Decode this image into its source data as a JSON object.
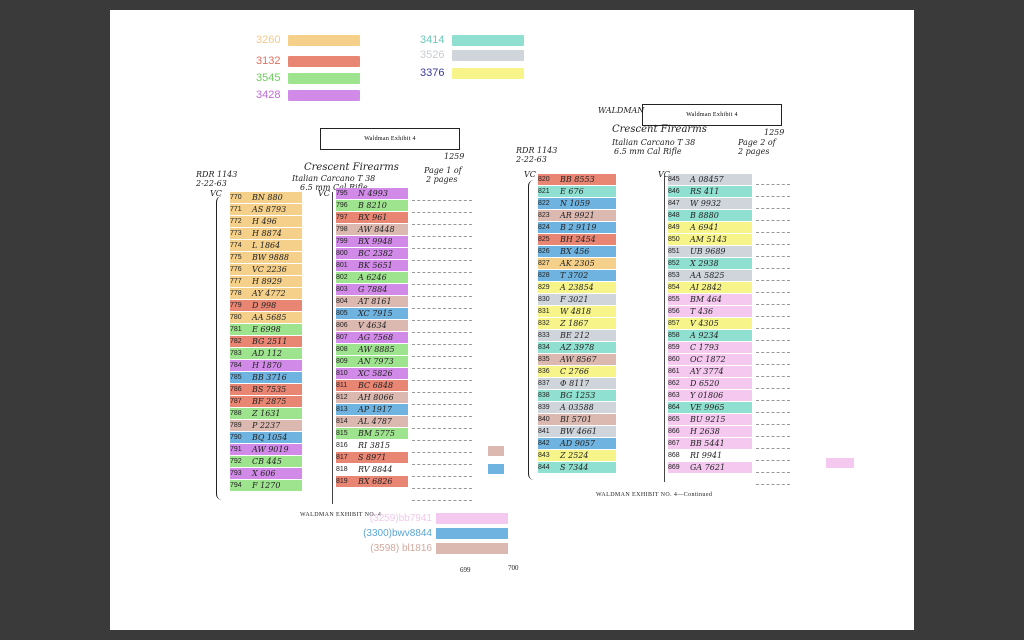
{
  "legend": [
    {
      "num": "3260",
      "color": "#f5d08a",
      "numColor": "#f2c98a"
    },
    {
      "num": "3132",
      "color": "#e88573",
      "numColor": "#e0705e"
    },
    {
      "num": "3545",
      "color": "#9ee38e",
      "numColor": "#6fce5e"
    },
    {
      "num": "3428",
      "color": "#d28ae8",
      "numColor": "#c06ad8"
    },
    {
      "num": "3414",
      "color": "#8fe0d0",
      "numColor": "#6cc9bb"
    },
    {
      "num": "3526",
      "color": "#d0d5dc",
      "numColor": "#c8ccd2"
    },
    {
      "num": "3376",
      "color": "#f7f58a",
      "numColor": "#3a3a9a"
    }
  ],
  "doc1": {
    "header": "Waldman Exhibit 4",
    "ref": "RDR 1143",
    "date": "2-22-63",
    "title": "Crescent Firearms",
    "subtitle": "Italian Carcano T 38",
    "subtitle2": "6.5 mm Cal Rifle",
    "num": "1259",
    "page": "Page 1 of",
    "page2": "2 pages",
    "vc1": "VC",
    "vc2": "VC",
    "caption": "WALDMAN EXHIBIT NO. 4",
    "col1": [
      {
        "n": "770",
        "t": "BN 880",
        "c": "#f5d08a"
      },
      {
        "n": "771",
        "t": "AS 8793",
        "c": "#f5d08a"
      },
      {
        "n": "772",
        "t": "H 496",
        "c": "#f5d08a"
      },
      {
        "n": "773",
        "t": "H 8874",
        "c": "#f5d08a"
      },
      {
        "n": "774",
        "t": "L 1864",
        "c": "#f5d08a"
      },
      {
        "n": "775",
        "t": "BW 9888",
        "c": "#f5d08a"
      },
      {
        "n": "776",
        "t": "VC 2236",
        "c": "#f5d08a"
      },
      {
        "n": "777",
        "t": "H 8929",
        "c": "#f5d08a"
      },
      {
        "n": "778",
        "t": "AY 4772",
        "c": "#f5d08a"
      },
      {
        "n": "779",
        "t": "D 998",
        "c": "#e88573"
      },
      {
        "n": "780",
        "t": "AA 5685",
        "c": "#f5d08a"
      },
      {
        "n": "781",
        "t": "E 6998",
        "c": "#9ee38e"
      },
      {
        "n": "782",
        "t": "BG 2511",
        "c": "#e88573"
      },
      {
        "n": "783",
        "t": "AD 112",
        "c": "#9ee38e"
      },
      {
        "n": "784",
        "t": "H 1870",
        "c": "#d28ae8"
      },
      {
        "n": "785",
        "t": "BB 3716",
        "c": "#6fb3e0"
      },
      {
        "n": "786",
        "t": "BS 7535",
        "c": "#e88573"
      },
      {
        "n": "787",
        "t": "BF 2875",
        "c": "#e88573"
      },
      {
        "n": "788",
        "t": "Z 1631",
        "c": "#9ee38e"
      },
      {
        "n": "789",
        "t": "P 2237",
        "c": "#dbb8b0"
      },
      {
        "n": "790",
        "t": "BQ 1054",
        "c": "#6fb3e0"
      },
      {
        "n": "791",
        "t": "AW 9019",
        "c": "#d28ae8"
      },
      {
        "n": "792",
        "t": "CB 445",
        "c": "#9ee38e"
      },
      {
        "n": "793",
        "t": "X 606",
        "c": "#d28ae8"
      },
      {
        "n": "794",
        "t": "F 1270",
        "c": "#9ee38e"
      }
    ],
    "col2": [
      {
        "n": "795",
        "t": "N 4993",
        "c": "#d28ae8"
      },
      {
        "n": "796",
        "t": "B 8210",
        "c": "#9ee38e"
      },
      {
        "n": "797",
        "t": "BX 961",
        "c": "#e88573"
      },
      {
        "n": "798",
        "t": "AW 8448",
        "c": "#dbb8b0"
      },
      {
        "n": "799",
        "t": "BX 9948",
        "c": "#d28ae8"
      },
      {
        "n": "800",
        "t": "BC 2382",
        "c": "#d28ae8"
      },
      {
        "n": "801",
        "t": "BK 5651",
        "c": "#d28ae8"
      },
      {
        "n": "802",
        "t": "A 6246",
        "c": "#9ee38e"
      },
      {
        "n": "803",
        "t": "G 7884",
        "c": "#d28ae8"
      },
      {
        "n": "804",
        "t": "AT 8161",
        "c": "#dbb8b0"
      },
      {
        "n": "805",
        "t": "XC 7915",
        "c": "#6fb3e0"
      },
      {
        "n": "806",
        "t": "V 4634",
        "c": "#dbb8b0"
      },
      {
        "n": "807",
        "t": "AG 7568",
        "c": "#d28ae8"
      },
      {
        "n": "808",
        "t": "AW 8885",
        "c": "#9ee38e"
      },
      {
        "n": "809",
        "t": "AN 7973",
        "c": "#9ee38e"
      },
      {
        "n": "810",
        "t": "XC 5826",
        "c": "#d28ae8"
      },
      {
        "n": "811",
        "t": "BC 6848",
        "c": "#e88573"
      },
      {
        "n": "812",
        "t": "AH 8066",
        "c": "#dbb8b0"
      },
      {
        "n": "813",
        "t": "AP 1917",
        "c": "#6fb3e0"
      },
      {
        "n": "814",
        "t": "AL 4787",
        "c": "#dbb8b0"
      },
      {
        "n": "815",
        "t": "BM 5775",
        "c": "#9ee38e"
      },
      {
        "n": "816",
        "t": "RI 3815",
        "c": ""
      },
      {
        "n": "817",
        "t": "S 8971",
        "c": "#e88573"
      },
      {
        "n": "818",
        "t": "RV 8844",
        "c": ""
      },
      {
        "n": "819",
        "t": "BX 6826",
        "c": "#e88573"
      }
    ]
  },
  "doc2": {
    "header": "Waldman Exhibit 4",
    "handTop": "WALDMAN",
    "ref": "RDR 1143",
    "date": "2-22-63",
    "title": "Crescent Firearms",
    "subtitle": "Italian Carcano T 38",
    "subtitle2": "6.5 mm Cal Rifle",
    "num": "1259",
    "page": "Page 2 of",
    "page2": "2 pages",
    "vc1": "VC",
    "vc2": "VC",
    "caption": "WALDMAN EXHIBIT NO. 4—Continued",
    "col1": [
      {
        "n": "820",
        "t": "BB 8553",
        "c": "#e88573"
      },
      {
        "n": "821",
        "t": "E 676",
        "c": "#8fe0d0"
      },
      {
        "n": "822",
        "t": "N 1059",
        "c": "#6fb3e0"
      },
      {
        "n": "823",
        "t": "AR 9921",
        "c": "#dbb8b0"
      },
      {
        "n": "824",
        "t": "B 2 9119",
        "c": "#6fb3e0"
      },
      {
        "n": "825",
        "t": "BH 2454",
        "c": "#e88573"
      },
      {
        "n": "826",
        "t": "BX 456",
        "c": "#6fb3e0"
      },
      {
        "n": "827",
        "t": "AK 2305",
        "c": "#f5d08a"
      },
      {
        "n": "828",
        "t": "T 3702",
        "c": "#6fb3e0"
      },
      {
        "n": "829",
        "t": "A 23854",
        "c": "#f7f58a"
      },
      {
        "n": "830",
        "t": "F 3021",
        "c": "#d0d5dc"
      },
      {
        "n": "831",
        "t": "W 4818",
        "c": "#f7f58a"
      },
      {
        "n": "832",
        "t": "Z 1867",
        "c": "#f7f58a"
      },
      {
        "n": "833",
        "t": "BE 212",
        "c": "#d0d5dc"
      },
      {
        "n": "834",
        "t": "AZ 3978",
        "c": "#8fe0d0"
      },
      {
        "n": "835",
        "t": "AW 8567",
        "c": "#dbb8b0"
      },
      {
        "n": "836",
        "t": "C 2766",
        "c": "#f7f58a"
      },
      {
        "n": "837",
        "t": "Φ 8117",
        "c": "#d0d5dc"
      },
      {
        "n": "838",
        "t": "BG 1253",
        "c": "#8fe0d0"
      },
      {
        "n": "839",
        "t": "A 03588",
        "c": "#d0d5dc"
      },
      {
        "n": "840",
        "t": "BI 5701",
        "c": "#dbb8b0"
      },
      {
        "n": "841",
        "t": "BW 4661",
        "c": "#d0d5dc"
      },
      {
        "n": "842",
        "t": "AD 9057",
        "c": "#6fb3e0"
      },
      {
        "n": "843",
        "t": "Z 2524",
        "c": "#f7f58a"
      },
      {
        "n": "844",
        "t": "S 7344",
        "c": "#8fe0d0"
      }
    ],
    "col2": [
      {
        "n": "845",
        "t": "A 08457",
        "c": "#d0d5dc"
      },
      {
        "n": "846",
        "t": "RS 411",
        "c": "#8fe0d0"
      },
      {
        "n": "847",
        "t": "W 9932",
        "c": "#d0d5dc"
      },
      {
        "n": "848",
        "t": "B 8880",
        "c": "#8fe0d0"
      },
      {
        "n": "849",
        "t": "A 6941",
        "c": "#f7f58a"
      },
      {
        "n": "850",
        "t": "AM 5143",
        "c": "#f7f58a"
      },
      {
        "n": "851",
        "t": "UB 9689",
        "c": "#d0d5dc"
      },
      {
        "n": "852",
        "t": "X 2938",
        "c": "#8fe0d0"
      },
      {
        "n": "853",
        "t": "AA 5825",
        "c": "#d0d5dc"
      },
      {
        "n": "854",
        "t": "AI 2842",
        "c": "#f7f58a"
      },
      {
        "n": "855",
        "t": "BM 464",
        "c": "#f5c8f0"
      },
      {
        "n": "856",
        "t": "T 436",
        "c": "#f5c8f0"
      },
      {
        "n": "857",
        "t": "V 4305",
        "c": "#f7f58a"
      },
      {
        "n": "858",
        "t": "A 9234",
        "c": "#8fe0d0"
      },
      {
        "n": "859",
        "t": "C 1793",
        "c": "#f5c8f0"
      },
      {
        "n": "860",
        "t": "OC 1872",
        "c": "#f5c8f0"
      },
      {
        "n": "861",
        "t": "AY 3774",
        "c": "#f5c8f0"
      },
      {
        "n": "862",
        "t": "D 6520",
        "c": "#f5c8f0"
      },
      {
        "n": "863",
        "t": "Y 01806",
        "c": "#f5c8f0"
      },
      {
        "n": "864",
        "t": "VE 9965",
        "c": "#8fe0d0"
      },
      {
        "n": "865",
        "t": "BU 9215",
        "c": "#f5c8f0"
      },
      {
        "n": "866",
        "t": "H 2638",
        "c": "#f5c8f0"
      },
      {
        "n": "867",
        "t": "BB 5441",
        "c": "#f5c8f0"
      },
      {
        "n": "868",
        "t": "RI 9941",
        "c": ""
      },
      {
        "n": "869",
        "t": "GA 7621",
        "c": "#f5c8f0"
      }
    ]
  },
  "swatches": [
    {
      "color": "#dbb8b0"
    },
    {
      "color": "#6fb3e0"
    },
    {
      "color": "#f5c8f0"
    }
  ],
  "bottomLegend": [
    {
      "text": "(3259)bb7941",
      "color": "#f5c8f0",
      "textColor": "#f0c8ea"
    },
    {
      "text": "(3300)bwv8844",
      "color": "#6fb3e0",
      "textColor": "#5aa6d6"
    },
    {
      "text": "(3598) bl1816",
      "color": "#dbb8b0",
      "textColor": "#d4a89e"
    }
  ],
  "pageNums": [
    "699",
    "700"
  ]
}
